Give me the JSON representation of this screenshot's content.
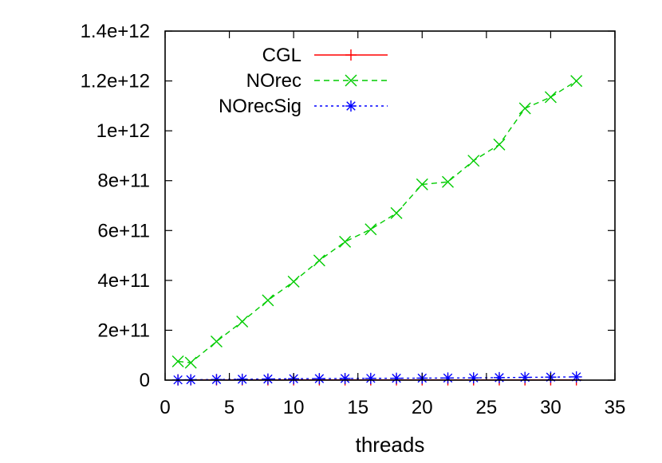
{
  "chart_data": {
    "type": "line",
    "title": "",
    "xlabel": "threads",
    "ylabel": "",
    "xlim": [
      0,
      35
    ],
    "ylim": [
      0,
      1400000000000
    ],
    "xticks": [
      0,
      5,
      10,
      15,
      20,
      25,
      30,
      35
    ],
    "xtick_labels": [
      "0",
      "5",
      "10",
      "15",
      "20",
      "25",
      "30",
      "35"
    ],
    "yticks": [
      0,
      200000000000,
      400000000000,
      600000000000,
      800000000000,
      1000000000000,
      1200000000000,
      1400000000000
    ],
    "ytick_labels": [
      "0",
      "2e+11",
      "4e+11",
      "6e+11",
      "8e+11",
      "1e+12",
      "1.2e+12",
      "1.4e+12"
    ],
    "grid": false,
    "legend_position": "top-left",
    "series": [
      {
        "name": "CGL",
        "color": "#ff0000",
        "dash": "solid",
        "marker": "plus",
        "x": [
          1,
          2,
          4,
          6,
          8,
          10,
          12,
          14,
          16,
          18,
          20,
          22,
          24,
          26,
          28,
          30,
          32
        ],
        "y": [
          1000000000,
          1000000000,
          1000000000,
          1000000000,
          1000000000,
          1000000000,
          1000000000,
          1000000000,
          1000000000,
          1000000000,
          1000000000,
          1000000000,
          1000000000,
          1000000000,
          1000000000,
          1000000000,
          1000000000
        ]
      },
      {
        "name": "NOrec",
        "color": "#00cc00",
        "dash": "dashed",
        "marker": "x",
        "x": [
          1,
          2,
          4,
          6,
          8,
          10,
          12,
          14,
          16,
          18,
          20,
          22,
          24,
          26,
          28,
          30,
          32
        ],
        "y": [
          75000000000,
          70000000000,
          155000000000,
          235000000000,
          320000000000,
          395000000000,
          480000000000,
          555000000000,
          605000000000,
          670000000000,
          785000000000,
          795000000000,
          880000000000,
          945000000000,
          1090000000000,
          1135000000000,
          1200000000000
        ]
      },
      {
        "name": "NOrecSig",
        "color": "#0000ff",
        "dash": "dotted",
        "marker": "star",
        "x": [
          1,
          2,
          4,
          6,
          8,
          10,
          12,
          14,
          16,
          18,
          20,
          22,
          24,
          26,
          28,
          30,
          32
        ],
        "y": [
          1000000000,
          1500000000,
          2500000000,
          3500000000,
          4500000000,
          5500000000,
          6000000000,
          6500000000,
          7000000000,
          7500000000,
          8000000000,
          8500000000,
          9000000000,
          10000000000,
          11000000000,
          12000000000,
          13000000000
        ]
      }
    ]
  }
}
